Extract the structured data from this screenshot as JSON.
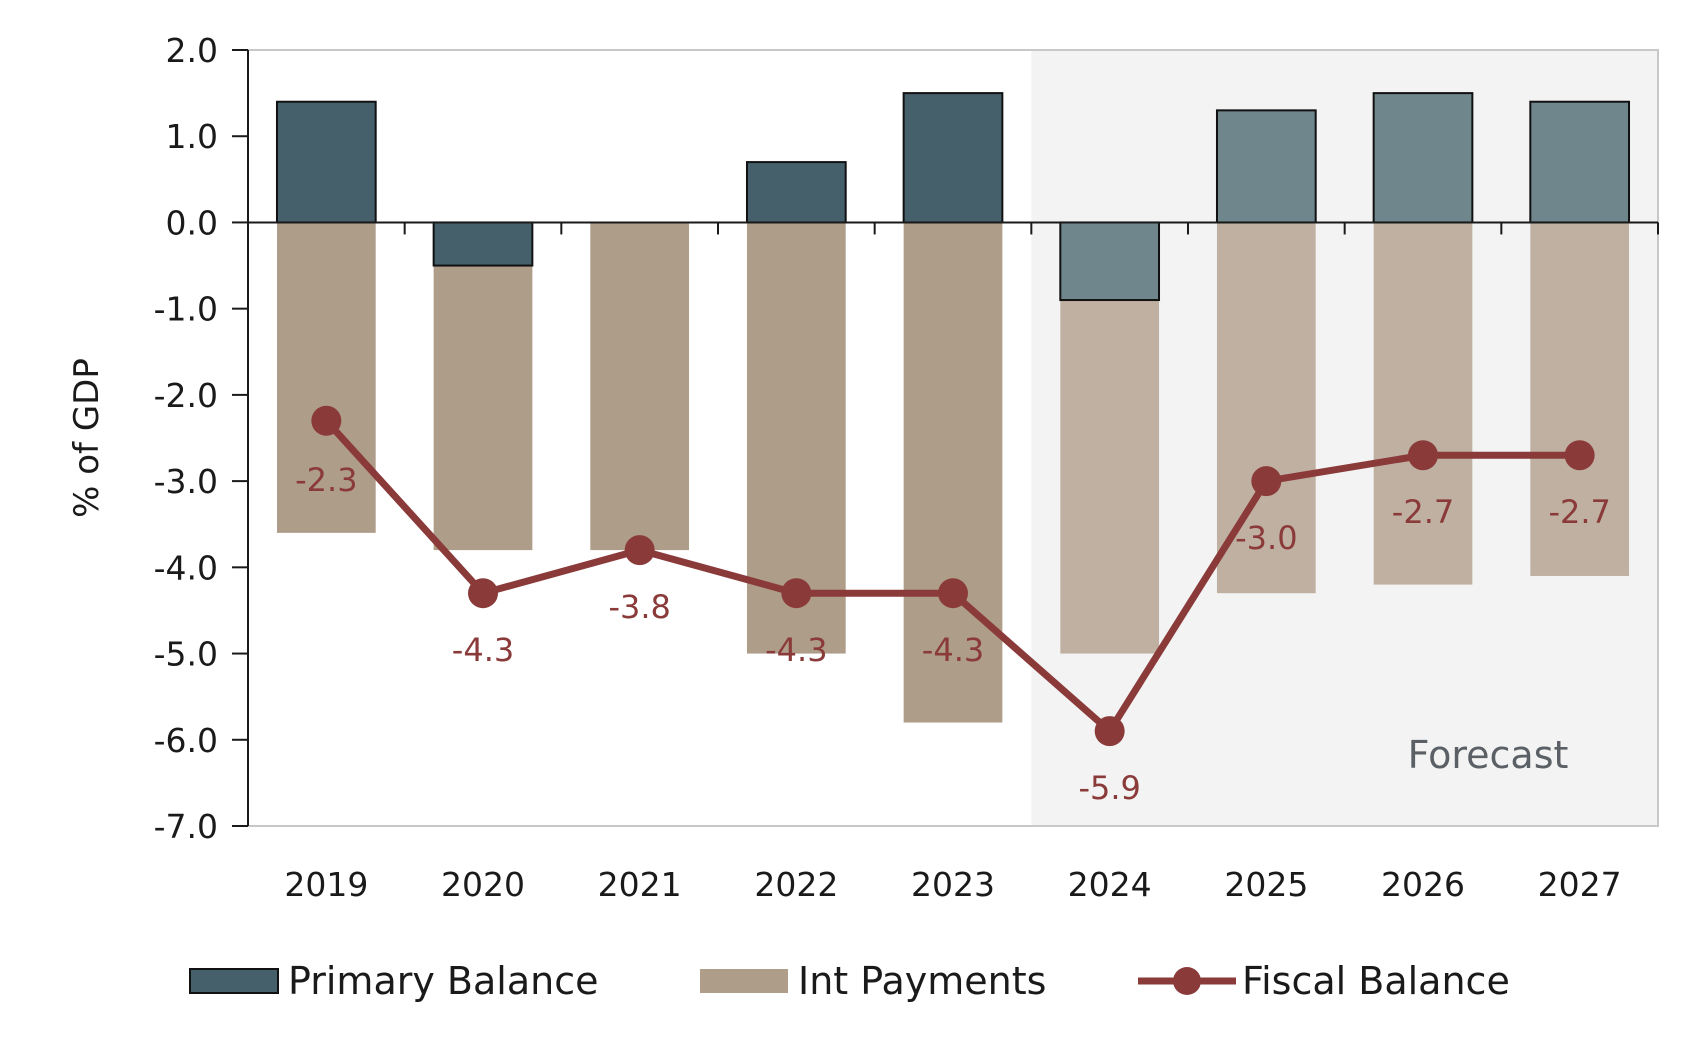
{
  "chart_data": {
    "type": "bar",
    "categories": [
      "2019",
      "2020",
      "2021",
      "2022",
      "2023",
      "2024",
      "2025",
      "2026",
      "2027"
    ],
    "forecast_start_index": 5,
    "series": [
      {
        "name": "Primary Balance",
        "type": "bar",
        "values": [
          1.4,
          -0.5,
          0.0,
          0.7,
          1.5,
          -0.9,
          1.3,
          1.5,
          1.4
        ]
      },
      {
        "name": "Int Payments",
        "type": "bar",
        "values": [
          -3.6,
          -3.8,
          -3.8,
          -5.0,
          -5.8,
          -5.0,
          -4.3,
          -4.2,
          -4.1
        ]
      },
      {
        "name": "Fiscal Balance",
        "type": "line",
        "values": [
          -2.3,
          -4.3,
          -3.8,
          -4.3,
          -4.3,
          -5.9,
          -3.0,
          -2.7,
          -2.7
        ]
      }
    ],
    "data_labels": [
      "-2.3",
      "-4.3",
      "-3.8",
      "-4.3",
      "-4.3",
      "-5.9",
      "-3.0",
      "-2.7",
      "-2.7"
    ],
    "yticks": [
      "2.0",
      "1.0",
      "0.0",
      "-1.0",
      "-2.0",
      "-3.0",
      "-4.0",
      "-5.0",
      "-6.0",
      "-7.0"
    ],
    "ylim": [
      -7,
      2
    ],
    "ylabel": "% of GDP",
    "xlabel": "",
    "annotation": "Forecast",
    "legend": {
      "placement": "bottom",
      "items": [
        "Primary Balance",
        "Int Payments",
        "Fiscal Balance"
      ]
    },
    "colors": {
      "primary_actual": "#46606b",
      "primary_forecast": "#6f868d",
      "int_actual": "#ae9d88",
      "int_forecast": "#bfb0a1",
      "fiscal": "#8b3a3a",
      "forecast_bg": "#f2f3f2"
    }
  }
}
